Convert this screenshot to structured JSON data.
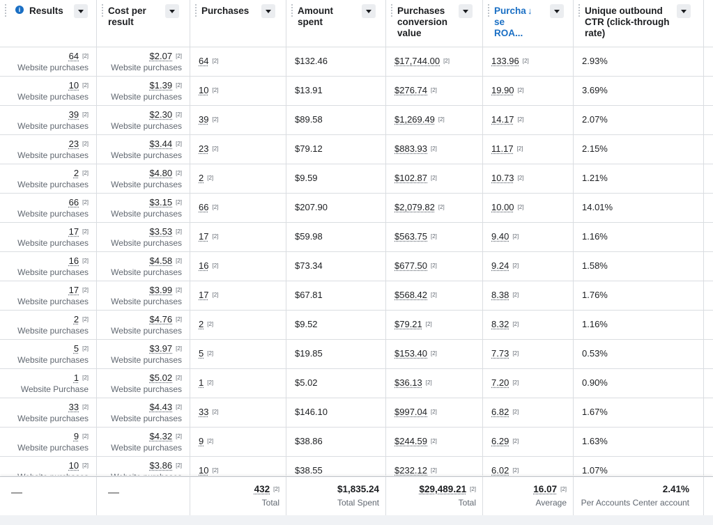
{
  "header": {
    "columns": [
      {
        "label": "Results"
      },
      {
        "label": "Cost per result"
      },
      {
        "label": "Purchases"
      },
      {
        "label": "Amount spent"
      },
      {
        "label": "Purchases conversion value"
      },
      {
        "label": "Purcha se ROA..."
      },
      {
        "label": "Unique outbound CTR (click-through rate)"
      }
    ],
    "info_icon_glyph": "i",
    "sort_icon_glyph": "↓"
  },
  "rows": [
    {
      "results": "64",
      "results_sub": "Website purchases",
      "cost": "$2.07",
      "cost_sub": "Website purchases",
      "purchases": "64",
      "spent": "$132.46",
      "conv": "$17,744.00",
      "roas": "133.96",
      "ctr": "2.93%"
    },
    {
      "results": "10",
      "results_sub": "Website purchases",
      "cost": "$1.39",
      "cost_sub": "Website purchases",
      "purchases": "10",
      "spent": "$13.91",
      "conv": "$276.74",
      "roas": "19.90",
      "ctr": "3.69%"
    },
    {
      "results": "39",
      "results_sub": "Website purchases",
      "cost": "$2.30",
      "cost_sub": "Website purchases",
      "purchases": "39",
      "spent": "$89.58",
      "conv": "$1,269.49",
      "roas": "14.17",
      "ctr": "2.07%"
    },
    {
      "results": "23",
      "results_sub": "Website purchases",
      "cost": "$3.44",
      "cost_sub": "Website purchases",
      "purchases": "23",
      "spent": "$79.12",
      "conv": "$883.93",
      "roas": "11.17",
      "ctr": "2.15%"
    },
    {
      "results": "2",
      "results_sub": "Website purchases",
      "cost": "$4.80",
      "cost_sub": "Website purchases",
      "purchases": "2",
      "spent": "$9.59",
      "conv": "$102.87",
      "roas": "10.73",
      "ctr": "1.21%"
    },
    {
      "results": "66",
      "results_sub": "Website purchases",
      "cost": "$3.15",
      "cost_sub": "Website purchases",
      "purchases": "66",
      "spent": "$207.90",
      "conv": "$2,079.82",
      "roas": "10.00",
      "ctr": "14.01%"
    },
    {
      "results": "17",
      "results_sub": "Website purchases",
      "cost": "$3.53",
      "cost_sub": "Website purchases",
      "purchases": "17",
      "spent": "$59.98",
      "conv": "$563.75",
      "roas": "9.40",
      "ctr": "1.16%"
    },
    {
      "results": "16",
      "results_sub": "Website purchases",
      "cost": "$4.58",
      "cost_sub": "Website purchases",
      "purchases": "16",
      "spent": "$73.34",
      "conv": "$677.50",
      "roas": "9.24",
      "ctr": "1.58%"
    },
    {
      "results": "17",
      "results_sub": "Website purchases",
      "cost": "$3.99",
      "cost_sub": "Website purchases",
      "purchases": "17",
      "spent": "$67.81",
      "conv": "$568.42",
      "roas": "8.38",
      "ctr": "1.76%"
    },
    {
      "results": "2",
      "results_sub": "Website purchases",
      "cost": "$4.76",
      "cost_sub": "Website purchases",
      "purchases": "2",
      "spent": "$9.52",
      "conv": "$79.21",
      "roas": "8.32",
      "ctr": "1.16%"
    },
    {
      "results": "5",
      "results_sub": "Website purchases",
      "cost": "$3.97",
      "cost_sub": "Website purchases",
      "purchases": "5",
      "spent": "$19.85",
      "conv": "$153.40",
      "roas": "7.73",
      "ctr": "0.53%"
    },
    {
      "results": "1",
      "results_sub": "Website Purchase",
      "cost": "$5.02",
      "cost_sub": "Website purchases",
      "purchases": "1",
      "spent": "$5.02",
      "conv": "$36.13",
      "roas": "7.20",
      "ctr": "0.90%"
    },
    {
      "results": "33",
      "results_sub": "Website purchases",
      "cost": "$4.43",
      "cost_sub": "Website purchases",
      "purchases": "33",
      "spent": "$146.10",
      "conv": "$997.04",
      "roas": "6.82",
      "ctr": "1.67%"
    },
    {
      "results": "9",
      "results_sub": "Website purchases",
      "cost": "$4.32",
      "cost_sub": "Website purchases",
      "purchases": "9",
      "spent": "$38.86",
      "conv": "$244.59",
      "roas": "6.29",
      "ctr": "1.63%"
    },
    {
      "results": "10",
      "results_sub": "Website purchases",
      "cost": "$3.86",
      "cost_sub": "Website purchases",
      "purchases": "10",
      "spent": "$38.55",
      "conv": "$232.12",
      "roas": "6.02",
      "ctr": "1.07%"
    }
  ],
  "ref_mark": "[2]",
  "footer": {
    "results": "—",
    "cost": "—",
    "purchases": {
      "value": "432",
      "label": "Total"
    },
    "spent": {
      "value": "$1,835.24",
      "label": "Total Spent"
    },
    "conv": {
      "value": "$29,489.21",
      "label": "Total"
    },
    "roas": {
      "value": "16.07",
      "label": "Average"
    },
    "ctr": {
      "value": "2.41%",
      "label": "Per Accounts Center account"
    }
  },
  "colors": {
    "accent": "#1a6fc4",
    "border": "#dadde1",
    "muted": "#606770"
  }
}
